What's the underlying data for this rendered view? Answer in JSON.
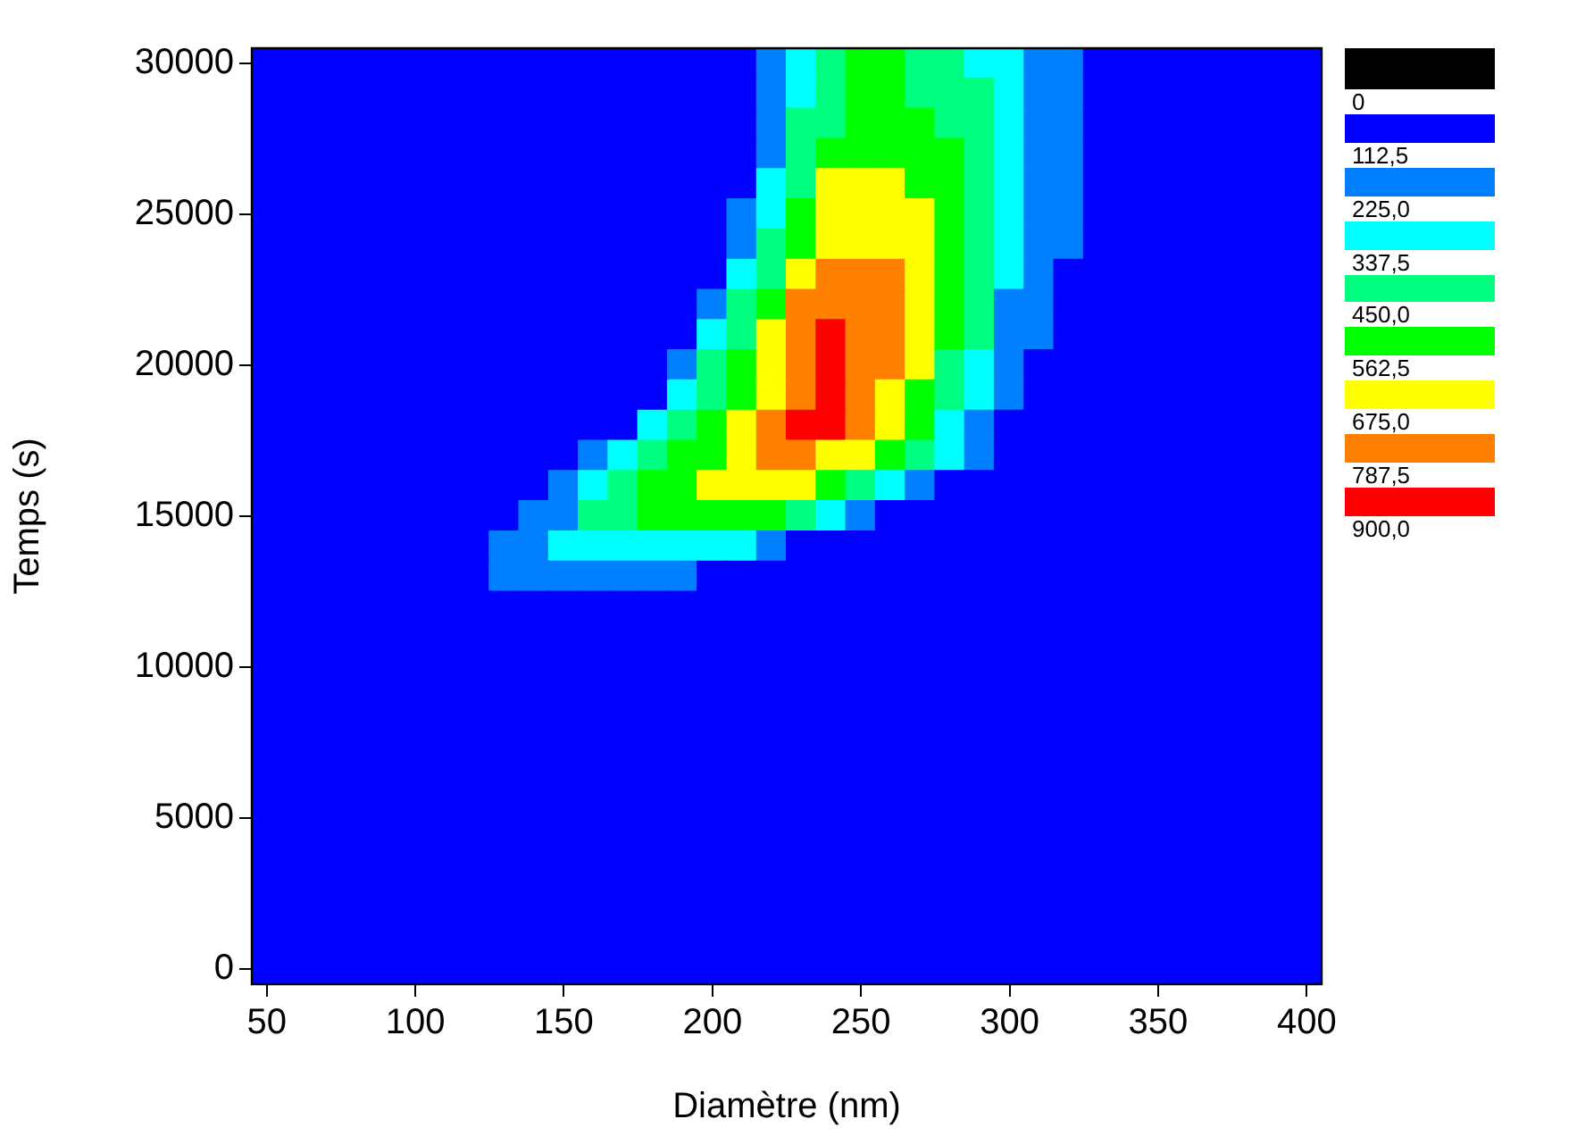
{
  "chart_data": {
    "type": "heatmap",
    "xlabel": "Diamètre (nm)",
    "ylabel": "Temps (s)",
    "categories": [
      "50",
      null,
      null,
      null,
      null,
      "100",
      null,
      null,
      null,
      null,
      "150",
      null,
      null,
      null,
      null,
      "200",
      null,
      null,
      null,
      null,
      "250",
      null,
      null,
      null,
      null,
      "300",
      null,
      null,
      null,
      null,
      "350",
      null,
      null,
      null,
      null,
      "400"
    ],
    "y_categories": [
      "30000",
      null,
      null,
      null,
      null,
      "25000",
      null,
      null,
      null,
      null,
      "20000",
      null,
      null,
      null,
      null,
      "15000",
      null,
      null,
      null,
      null,
      "10000",
      null,
      null,
      null,
      null,
      "5000",
      null,
      null,
      null,
      null,
      "0"
    ],
    "clim": [
      -112.5,
      900
    ],
    "cticks": [
      0,
      {
        "value": 112.5,
        "label": "112,5"
      },
      {
        "value": 225,
        "label": "225,0"
      },
      {
        "value": 337.5,
        "label": "337,5"
      },
      {
        "value": 450,
        "label": "450,0"
      },
      {
        "value": 562.5,
        "label": "562,5"
      },
      {
        "value": 675,
        "label": "675,0"
      },
      {
        "value": 787.5,
        "label": "787,5"
      },
      {
        "value": 900,
        "label": "900,0"
      }
    ],
    "colors": [
      "#000000",
      "#0000ff",
      "#0080ff",
      "#00ffff",
      "#00ff80",
      "#00ff00",
      "#ffff00",
      "#ff8000",
      "#ff0000"
    ],
    "cells": [
      [
        56,
        56,
        56,
        56,
        56,
        56,
        56,
        56,
        56,
        56,
        56,
        56,
        56,
        56,
        56,
        56,
        56,
        169,
        281,
        394,
        506,
        506,
        394,
        394,
        281,
        281,
        169,
        169,
        56,
        56,
        56,
        56,
        56,
        56,
        56,
        56
      ],
      [
        56,
        56,
        56,
        56,
        56,
        56,
        56,
        56,
        56,
        56,
        56,
        56,
        56,
        56,
        56,
        56,
        56,
        169,
        281,
        394,
        506,
        506,
        394,
        394,
        394,
        281,
        169,
        169,
        56,
        56,
        56,
        56,
        56,
        56,
        56,
        56
      ],
      [
        56,
        56,
        56,
        56,
        56,
        56,
        56,
        56,
        56,
        56,
        56,
        56,
        56,
        56,
        56,
        56,
        56,
        169,
        394,
        394,
        506,
        506,
        506,
        394,
        394,
        281,
        169,
        169,
        56,
        56,
        56,
        56,
        56,
        56,
        56,
        56
      ],
      [
        56,
        56,
        56,
        56,
        56,
        56,
        56,
        56,
        56,
        56,
        56,
        56,
        56,
        56,
        56,
        56,
        56,
        169,
        394,
        506,
        506,
        506,
        506,
        506,
        394,
        281,
        169,
        169,
        56,
        56,
        56,
        56,
        56,
        56,
        56,
        56
      ],
      [
        56,
        56,
        56,
        56,
        56,
        56,
        56,
        56,
        56,
        56,
        56,
        56,
        56,
        56,
        56,
        56,
        56,
        281,
        394,
        619,
        619,
        619,
        506,
        506,
        394,
        281,
        169,
        169,
        56,
        56,
        56,
        56,
        56,
        56,
        56,
        56
      ],
      [
        56,
        56,
        56,
        56,
        56,
        56,
        56,
        56,
        56,
        56,
        56,
        56,
        56,
        56,
        56,
        56,
        169,
        281,
        506,
        619,
        619,
        619,
        619,
        506,
        394,
        281,
        169,
        169,
        56,
        56,
        56,
        56,
        56,
        56,
        56,
        56
      ],
      [
        56,
        56,
        56,
        56,
        56,
        56,
        56,
        56,
        56,
        56,
        56,
        56,
        56,
        56,
        56,
        56,
        169,
        394,
        506,
        619,
        619,
        619,
        619,
        506,
        394,
        281,
        169,
        169,
        56,
        56,
        56,
        56,
        56,
        56,
        56,
        56
      ],
      [
        56,
        56,
        56,
        56,
        56,
        56,
        56,
        56,
        56,
        56,
        56,
        56,
        56,
        56,
        56,
        56,
        281,
        394,
        619,
        731,
        731,
        731,
        619,
        506,
        394,
        281,
        169,
        56,
        56,
        56,
        56,
        56,
        56,
        56,
        56,
        56
      ],
      [
        56,
        56,
        56,
        56,
        56,
        56,
        56,
        56,
        56,
        56,
        56,
        56,
        56,
        56,
        56,
        169,
        394,
        506,
        731,
        731,
        731,
        731,
        619,
        506,
        394,
        169,
        169,
        56,
        56,
        56,
        56,
        56,
        56,
        56,
        56,
        56
      ],
      [
        56,
        56,
        56,
        56,
        56,
        56,
        56,
        56,
        56,
        56,
        56,
        56,
        56,
        56,
        56,
        281,
        394,
        619,
        731,
        844,
        731,
        731,
        619,
        506,
        394,
        169,
        169,
        56,
        56,
        56,
        56,
        56,
        56,
        56,
        56,
        56
      ],
      [
        56,
        56,
        56,
        56,
        56,
        56,
        56,
        56,
        56,
        56,
        56,
        56,
        56,
        56,
        169,
        394,
        506,
        619,
        731,
        844,
        731,
        731,
        619,
        394,
        281,
        169,
        56,
        56,
        56,
        56,
        56,
        56,
        56,
        56,
        56,
        56
      ],
      [
        56,
        56,
        56,
        56,
        56,
        56,
        56,
        56,
        56,
        56,
        56,
        56,
        56,
        56,
        281,
        394,
        506,
        619,
        731,
        844,
        731,
        619,
        506,
        394,
        281,
        169,
        56,
        56,
        56,
        56,
        56,
        56,
        56,
        56,
        56,
        56
      ],
      [
        56,
        56,
        56,
        56,
        56,
        56,
        56,
        56,
        56,
        56,
        56,
        56,
        56,
        281,
        394,
        506,
        619,
        731,
        844,
        844,
        731,
        619,
        506,
        281,
        169,
        56,
        56,
        56,
        56,
        56,
        56,
        56,
        56,
        56,
        56,
        56
      ],
      [
        56,
        56,
        56,
        56,
        56,
        56,
        56,
        56,
        56,
        56,
        56,
        169,
        281,
        394,
        506,
        506,
        619,
        731,
        731,
        619,
        619,
        506,
        394,
        281,
        169,
        56,
        56,
        56,
        56,
        56,
        56,
        56,
        56,
        56,
        56,
        56
      ],
      [
        56,
        56,
        56,
        56,
        56,
        56,
        56,
        56,
        56,
        56,
        169,
        281,
        394,
        506,
        506,
        619,
        619,
        619,
        619,
        506,
        394,
        281,
        169,
        56,
        56,
        56,
        56,
        56,
        56,
        56,
        56,
        56,
        56,
        56,
        56,
        56
      ],
      [
        56,
        56,
        56,
        56,
        56,
        56,
        56,
        56,
        56,
        169,
        169,
        394,
        394,
        506,
        506,
        506,
        506,
        506,
        394,
        281,
        169,
        56,
        56,
        56,
        56,
        56,
        56,
        56,
        56,
        56,
        56,
        56,
        56,
        56,
        56,
        56
      ],
      [
        56,
        56,
        56,
        56,
        56,
        56,
        56,
        56,
        169,
        169,
        281,
        281,
        281,
        281,
        281,
        281,
        281,
        169,
        56,
        56,
        56,
        56,
        56,
        56,
        56,
        56,
        56,
        56,
        56,
        56,
        56,
        56,
        56,
        56,
        56,
        56
      ],
      [
        56,
        56,
        56,
        56,
        56,
        56,
        56,
        56,
        169,
        169,
        169,
        169,
        169,
        169,
        169,
        56,
        56,
        56,
        56,
        56,
        56,
        56,
        56,
        56,
        56,
        56,
        56,
        56,
        56,
        56,
        56,
        56,
        56,
        56,
        56,
        56
      ],
      [
        56,
        56,
        56,
        56,
        56,
        56,
        56,
        56,
        56,
        56,
        56,
        56,
        56,
        56,
        56,
        56,
        56,
        56,
        56,
        56,
        56,
        56,
        56,
        56,
        56,
        56,
        56,
        56,
        56,
        56,
        56,
        56,
        56,
        56,
        56,
        56
      ],
      [
        56,
        56,
        56,
        56,
        56,
        56,
        56,
        56,
        56,
        56,
        56,
        56,
        56,
        56,
        56,
        56,
        56,
        56,
        56,
        56,
        56,
        56,
        56,
        56,
        56,
        56,
        56,
        56,
        56,
        56,
        56,
        56,
        56,
        56,
        56,
        56
      ],
      [
        56,
        56,
        56,
        56,
        56,
        56,
        56,
        56,
        56,
        56,
        56,
        56,
        56,
        56,
        56,
        56,
        56,
        56,
        56,
        56,
        56,
        56,
        56,
        56,
        56,
        56,
        56,
        56,
        56,
        56,
        56,
        56,
        56,
        56,
        56,
        56
      ],
      [
        56,
        56,
        56,
        56,
        56,
        56,
        56,
        56,
        56,
        56,
        56,
        56,
        56,
        56,
        56,
        56,
        56,
        56,
        56,
        56,
        56,
        56,
        56,
        56,
        56,
        56,
        56,
        56,
        56,
        56,
        56,
        56,
        56,
        56,
        56,
        56
      ],
      [
        56,
        56,
        56,
        56,
        56,
        56,
        56,
        56,
        56,
        56,
        56,
        56,
        56,
        56,
        56,
        56,
        56,
        56,
        56,
        56,
        56,
        56,
        56,
        56,
        56,
        56,
        56,
        56,
        56,
        56,
        56,
        56,
        56,
        56,
        56,
        56
      ],
      [
        56,
        56,
        56,
        56,
        56,
        56,
        56,
        56,
        56,
        56,
        56,
        56,
        56,
        56,
        56,
        56,
        56,
        56,
        56,
        56,
        56,
        56,
        56,
        56,
        56,
        56,
        56,
        56,
        56,
        56,
        56,
        56,
        56,
        56,
        56,
        56
      ],
      [
        56,
        56,
        56,
        56,
        56,
        56,
        56,
        56,
        56,
        56,
        56,
        56,
        56,
        56,
        56,
        56,
        56,
        56,
        56,
        56,
        56,
        56,
        56,
        56,
        56,
        56,
        56,
        56,
        56,
        56,
        56,
        56,
        56,
        56,
        56,
        56
      ],
      [
        56,
        56,
        56,
        56,
        56,
        56,
        56,
        56,
        56,
        56,
        56,
        56,
        56,
        56,
        56,
        56,
        56,
        56,
        56,
        56,
        56,
        56,
        56,
        56,
        56,
        56,
        56,
        56,
        56,
        56,
        56,
        56,
        56,
        56,
        56,
        56
      ],
      [
        56,
        56,
        56,
        56,
        56,
        56,
        56,
        56,
        56,
        56,
        56,
        56,
        56,
        56,
        56,
        56,
        56,
        56,
        56,
        56,
        56,
        56,
        56,
        56,
        56,
        56,
        56,
        56,
        56,
        56,
        56,
        56,
        56,
        56,
        56,
        56
      ],
      [
        56,
        56,
        56,
        56,
        56,
        56,
        56,
        56,
        56,
        56,
        56,
        56,
        56,
        56,
        56,
        56,
        56,
        56,
        56,
        56,
        56,
        56,
        56,
        56,
        56,
        56,
        56,
        56,
        56,
        56,
        56,
        56,
        56,
        56,
        56,
        56
      ],
      [
        56,
        56,
        56,
        56,
        56,
        56,
        56,
        56,
        56,
        56,
        56,
        56,
        56,
        56,
        56,
        56,
        56,
        56,
        56,
        56,
        56,
        56,
        56,
        56,
        56,
        56,
        56,
        56,
        56,
        56,
        56,
        56,
        56,
        56,
        56,
        56
      ],
      [
        56,
        56,
        56,
        56,
        56,
        56,
        56,
        56,
        56,
        56,
        56,
        56,
        56,
        56,
        56,
        56,
        56,
        56,
        56,
        56,
        56,
        56,
        56,
        56,
        56,
        56,
        56,
        56,
        56,
        56,
        56,
        56,
        56,
        56,
        56,
        56
      ],
      [
        56,
        56,
        56,
        56,
        56,
        56,
        56,
        56,
        56,
        56,
        56,
        56,
        56,
        56,
        56,
        56,
        56,
        56,
        56,
        56,
        56,
        56,
        56,
        56,
        56,
        56,
        56,
        56,
        56,
        56,
        56,
        56,
        56,
        56,
        56,
        56
      ]
    ]
  }
}
